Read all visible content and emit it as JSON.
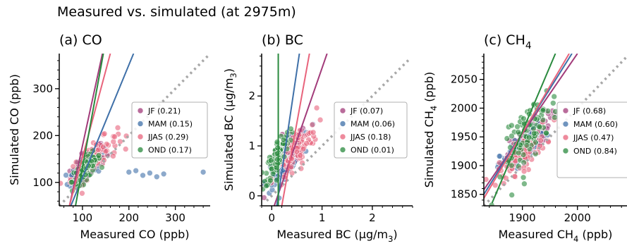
{
  "suptitle": "Measured vs. simulated (at 2975m)",
  "colors": {
    "JF": "#a23b7a",
    "MAM": "#3f70a8",
    "JJAS": "#e8637b",
    "OND": "#2a8a3e",
    "identity": "#a8a8a8"
  },
  "chart_data": [
    {
      "type": "scatter",
      "title_prefix": "(a) CO",
      "title_sub": "",
      "xlabel": "Measured CO (ppb)",
      "xlabel_sub": "",
      "ylabel": "Simulated CO (ppb)",
      "ylabel_sub": "",
      "xlim": [
        50,
        375
      ],
      "ylim": [
        50,
        375
      ],
      "xticks": [
        100,
        200,
        300
      ],
      "yticks": [
        100,
        200,
        300
      ],
      "xticklabels": [
        "100",
        "200",
        "300"
      ],
      "yticklabels": [
        "100",
        "200",
        "300"
      ],
      "series": [
        {
          "name": "JF",
          "r": "(0.21)",
          "fit": [
            [
              72,
              50
            ],
            [
              143,
              375
            ]
          ],
          "center": [
            110,
            140
          ],
          "spread": [
            18,
            28
          ]
        },
        {
          "name": "MAM",
          "r": "(0.15)",
          "fit": [
            [
              75,
              50
            ],
            [
              210,
              375
            ]
          ],
          "center": [
            115,
            135
          ],
          "spread": [
            22,
            25
          ]
        },
        {
          "name": "JJAS",
          "r": "(0.29)",
          "fit": [
            [
              72,
              50
            ],
            [
              160,
              375
            ]
          ],
          "center": [
            125,
            150
          ],
          "spread": [
            25,
            35
          ]
        },
        {
          "name": "OND",
          "r": "(0.17)",
          "fit": [
            [
              85,
              50
            ],
            [
              145,
              375
            ]
          ],
          "center": [
            108,
            130
          ],
          "spread": [
            15,
            25
          ]
        }
      ],
      "outliers": {
        "series": "MAM",
        "points": [
          [
            200,
            122
          ],
          [
            215,
            125
          ],
          [
            230,
            115
          ],
          [
            245,
            120
          ],
          [
            260,
            112
          ],
          [
            275,
            118
          ],
          [
            360,
            122
          ]
        ]
      },
      "identity_line": [
        [
          50,
          50
        ],
        [
          370,
          370
        ]
      ]
    },
    {
      "type": "scatter",
      "title_prefix": "(b) BC",
      "title_sub": "",
      "xlabel": "Measured BC (μg/m",
      "xlabel_sub": "3",
      "xlabel_end": ")",
      "ylabel": "Simulated BC (μg/m",
      "ylabel_sub": "3",
      "ylabel_end": ")",
      "xlim": [
        -0.2,
        2.8
      ],
      "ylim": [
        -0.2,
        2.85
      ],
      "xticks": [
        0,
        1,
        2
      ],
      "yticks": [
        0,
        1,
        2
      ],
      "xticklabels": [
        "0",
        "1",
        "2"
      ],
      "yticklabels": [
        "0",
        "1",
        "2"
      ],
      "series": [
        {
          "name": "JF",
          "r": "(0.07)",
          "fit": [
            [
              0.05,
              -0.2
            ],
            [
              1.1,
              2.85
            ]
          ],
          "center": [
            0.3,
            0.8
          ],
          "spread": [
            0.2,
            0.35
          ]
        },
        {
          "name": "MAM",
          "r": "(0.06)",
          "fit": [
            [
              0.1,
              -0.2
            ],
            [
              0.55,
              2.85
            ]
          ],
          "center": [
            0.25,
            0.7
          ],
          "spread": [
            0.18,
            0.35
          ]
        },
        {
          "name": "JJAS",
          "r": "(0.18)",
          "fit": [
            [
              0.2,
              -0.2
            ],
            [
              0.75,
              2.85
            ]
          ],
          "center": [
            0.45,
            0.85
          ],
          "spread": [
            0.22,
            0.45
          ]
        },
        {
          "name": "OND",
          "r": "(0.01)",
          "fit": [
            [
              0.13,
              -0.2
            ],
            [
              0.13,
              2.85
            ]
          ],
          "center": [
            0.12,
            0.8
          ],
          "spread": [
            0.12,
            0.35
          ]
        }
      ],
      "identity_line": [
        [
          -0.1,
          -0.1
        ],
        [
          2.75,
          2.75
        ]
      ]
    },
    {
      "type": "scatter",
      "title_prefix": "(c) CH",
      "title_sub": "4",
      "xlabel": "Measured CH",
      "xlabel_sub": "4",
      "xlabel_end": " (ppb)",
      "ylabel": "Simulated CH",
      "ylabel_sub": "4",
      "ylabel_end": " (ppb)",
      "xlim": [
        1830,
        2090
      ],
      "ylim": [
        1830,
        2095
      ],
      "xticks": [
        1900,
        2000
      ],
      "yticks": [
        1850,
        1900,
        1950,
        2000,
        2050
      ],
      "xticklabels": [
        "1900",
        "2000"
      ],
      "yticklabels": [
        "1850",
        "1900",
        "1950",
        "2000",
        "2050"
      ],
      "series": [
        {
          "name": "JF",
          "r": "(0.68)",
          "fit": [
            [
              1830,
              1858
            ],
            [
              2000,
              2095
            ]
          ],
          "center": [
            1910,
            1945
          ],
          "spread": [
            20,
            30
          ]
        },
        {
          "name": "MAM",
          "r": "(0.60)",
          "fit": [
            [
              1830,
              1850
            ],
            [
              1990,
              2095
            ]
          ],
          "center": [
            1900,
            1930
          ],
          "spread": [
            20,
            28
          ]
        },
        {
          "name": "JJAS",
          "r": "(0.47)",
          "fit": [
            [
              1830,
              1843
            ],
            [
              1985,
              2095
            ]
          ],
          "center": [
            1900,
            1920
          ],
          "spread": [
            22,
            30
          ]
        },
        {
          "name": "OND",
          "r": "(0.84)",
          "fit": [
            [
              1845,
              1835
            ],
            [
              1960,
              2095
            ]
          ],
          "center": [
            1915,
            1960
          ],
          "spread": [
            25,
            55
          ]
        }
      ],
      "identity_line": [
        [
          1830,
          1830
        ],
        [
          2090,
          2090
        ]
      ]
    }
  ]
}
